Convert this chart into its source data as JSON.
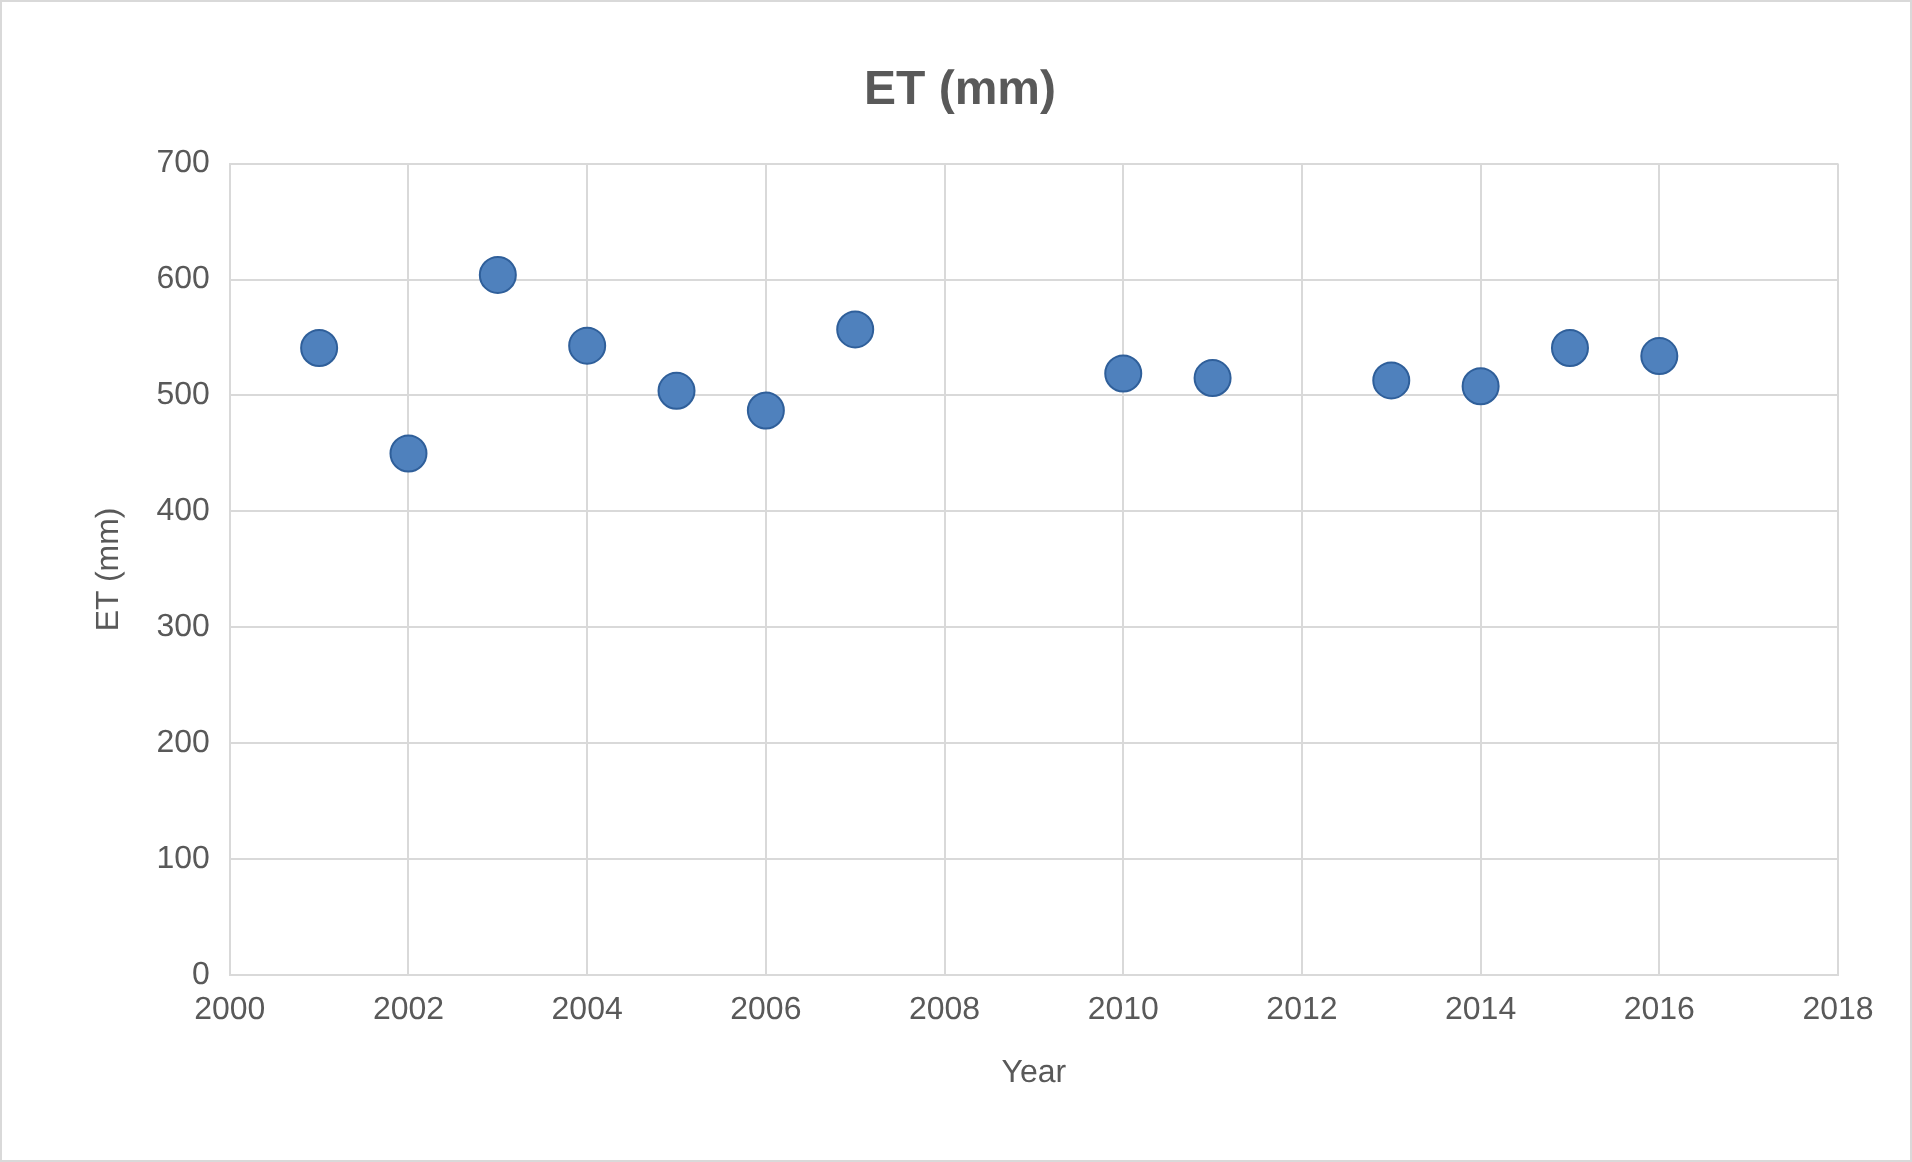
{
  "chart_data": {
    "type": "scatter",
    "title": "ET (mm)",
    "xlabel": "Year",
    "ylabel": "ET (mm)",
    "x": [
      2001,
      2002,
      2003,
      2004,
      2005,
      2006,
      2007,
      2010,
      2011,
      2013,
      2014,
      2015,
      2016
    ],
    "values": [
      541,
      450,
      604,
      543,
      504,
      487,
      557,
      519,
      515,
      513,
      508,
      541,
      534
    ],
    "color": "#4f81bd",
    "marker": "circle",
    "grid": true,
    "legend": false,
    "xlim": [
      2000,
      2018
    ],
    "xticks": [
      2000,
      2002,
      2004,
      2006,
      2008,
      2010,
      2012,
      2014,
      2016,
      2018
    ],
    "ylim": [
      0,
      700
    ],
    "yticks": [
      0,
      100,
      200,
      300,
      400,
      500,
      600,
      700
    ]
  }
}
